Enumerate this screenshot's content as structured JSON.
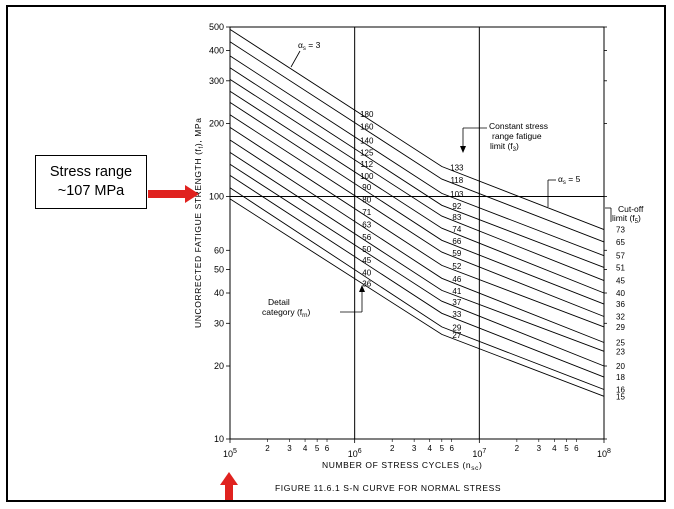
{
  "callout": {
    "line1": "Stress range",
    "line2": "~107 MPa"
  },
  "colors": {
    "arrow": "#e0221f",
    "lines": "#000000"
  },
  "chart_data": {
    "type": "line",
    "title": "FIGURE 11.6.1   S-N CURVE FOR NORMAL STRESS",
    "xlabel": "NUMBER OF STRESS CYCLES (n",
    "xlabel_sub": "sc",
    "xlabel_end": ")",
    "ylabel": "UNCORRECTED FATIGUE STRENGTH (f",
    "ylabel_sub": "f",
    "ylabel_end": "), MPa",
    "xscale": "log",
    "yscale": "log",
    "xlim": [
      100000,
      100000000
    ],
    "ylim": [
      10,
      500
    ],
    "x_decades": [
      {
        "base": "10",
        "exp": "5",
        "value": 100000
      },
      {
        "base": "10",
        "exp": "6",
        "value": 1000000
      },
      {
        "base": "10",
        "exp": "7",
        "value": 10000000
      },
      {
        "base": "10",
        "exp": "8",
        "value": 100000000
      }
    ],
    "x_minor": [
      "2",
      "3",
      "4",
      "5",
      "6"
    ],
    "y_ticks": [
      {
        "label": "500",
        "value": 500
      },
      {
        "label": "400",
        "value": 400
      },
      {
        "label": "300",
        "value": 300
      },
      {
        "label": "200",
        "value": 200
      },
      {
        "label": "100",
        "value": 100
      },
      {
        "label": "60",
        "value": 60
      },
      {
        "label": "50",
        "value": 50
      },
      {
        "label": "40",
        "value": 40
      },
      {
        "label": "30",
        "value": 30
      },
      {
        "label": "20",
        "value": 20
      },
      {
        "label": "10",
        "value": 10
      }
    ],
    "vertical_refs": [
      1000000,
      10000000
    ],
    "horizontal_ref": 100,
    "series": [
      {
        "name": "180",
        "f3": "133",
        "f5": "73"
      },
      {
        "name": "160",
        "f3": "118",
        "f5": "65"
      },
      {
        "name": "140",
        "f3": "103",
        "f5": "57"
      },
      {
        "name": "125",
        "f3": "92",
        "f5": "51"
      },
      {
        "name": "112",
        "f3": "83",
        "f5": "45"
      },
      {
        "name": "100",
        "f3": "74",
        "f5": "40"
      },
      {
        "name": "90",
        "f3": "66",
        "f5": "36"
      },
      {
        "name": "80",
        "f3": "59",
        "f5": "32"
      },
      {
        "name": "71",
        "f3": "52",
        "f5": "29"
      },
      {
        "name": "63",
        "f3": "46",
        "f5": "25"
      },
      {
        "name": "56",
        "f3": "41",
        "f5": "23"
      },
      {
        "name": "50",
        "f3": "37",
        "f5": "20"
      },
      {
        "name": "45",
        "f3": "33",
        "f5": "18"
      },
      {
        "name": "40",
        "f3": "29",
        "f5": "16"
      },
      {
        "name": "36",
        "f3": "27",
        "f5": "15"
      }
    ],
    "annotations": {
      "alpha3": {
        "sym": "α",
        "sub": "s",
        "text": " = 3"
      },
      "alpha5": {
        "sym": "α",
        "sub": "s",
        "text": " = 5"
      },
      "constant": {
        "l1": "Constant stress",
        "l2": "range fatigue",
        "l3": "limit (f",
        "sub": "3",
        "end": ")"
      },
      "cutoff": {
        "l1": "Cut-off",
        "l2": "limit (f",
        "sub": "5",
        "end": ")"
      },
      "detail": {
        "l1": "Detail",
        "l2": "category (f",
        "sub": "rn",
        "end": ")"
      }
    }
  }
}
